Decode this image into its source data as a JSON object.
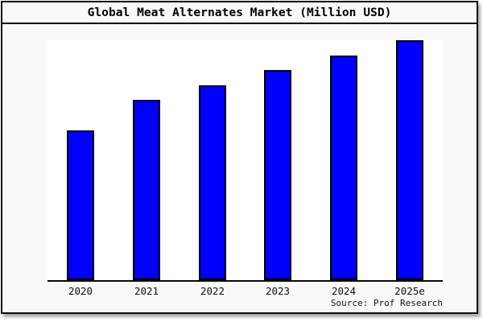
{
  "window": {
    "background_color": "#f9f9f9",
    "frame_border_color": "#000000",
    "plot_background_color": "#ffffff"
  },
  "header": {
    "title": "Global Meat Alternates Market (Million USD)"
  },
  "footer": {
    "source": "Source: Prof Research"
  },
  "chart_data": {
    "type": "bar",
    "title": "Global Meat Alternates Market (Million USD)",
    "categories": [
      "2020",
      "2021",
      "2022",
      "2023",
      "2024",
      "2025e"
    ],
    "values_relative_pct": [
      62.5,
      75.0,
      81.3,
      87.6,
      93.7,
      100.0
    ],
    "value_note": "Chart shows no numeric y-axis ticks, gridlines, or data labels; values are bar heights as percent of the tallest bar (2025e).",
    "xlabel": "",
    "ylabel": "",
    "grid": false,
    "legend": false,
    "bar_color": "#0000fe",
    "bar_border_color": "#000000",
    "source_label": "Source: Prof Research"
  }
}
